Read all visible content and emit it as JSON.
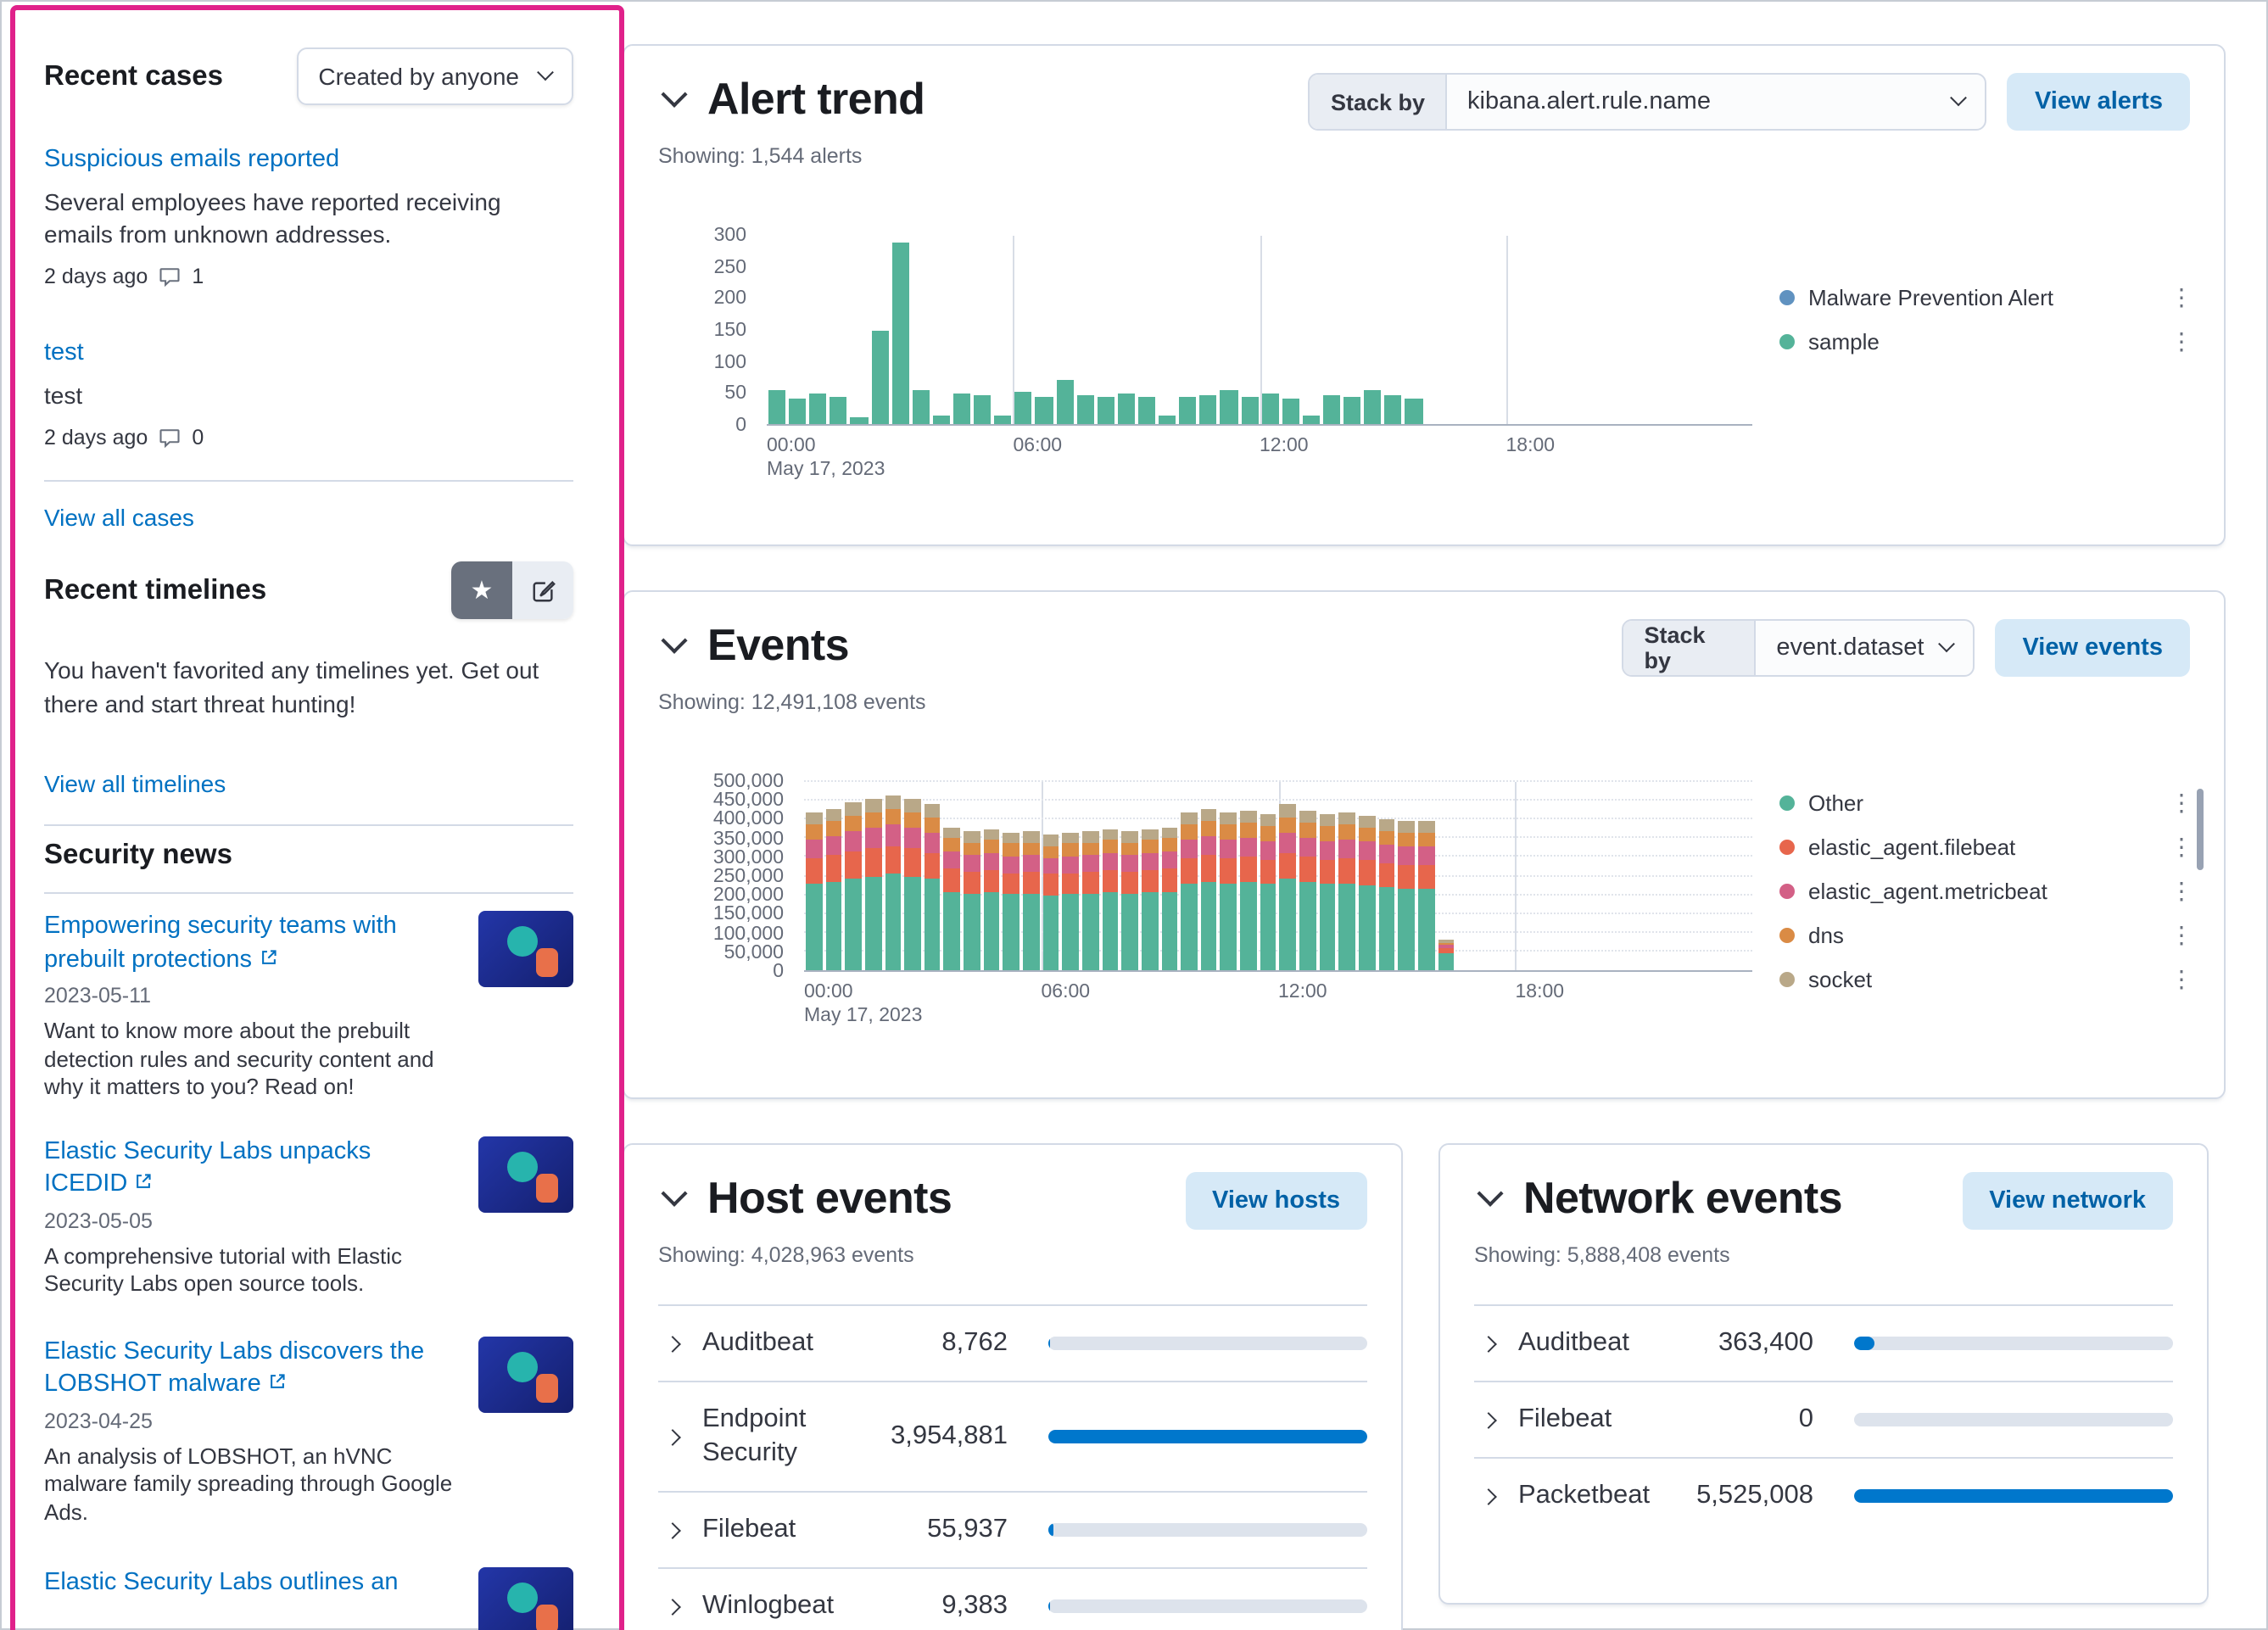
{
  "colors": {
    "link": "#0071c2",
    "primary_button_bg": "#d6e9f7",
    "primary_button_text": "#0061a6",
    "progress_fill": "#0077cc",
    "annotation_highlight": "#e0218a"
  },
  "sidebar": {
    "recent_cases": {
      "title": "Recent cases",
      "filter_label": "Created by anyone",
      "cases": [
        {
          "title": "Suspicious emails reported",
          "description": "Several employees have reported receiving emails from unknown addresses.",
          "time": "2 days ago",
          "comments": "1"
        },
        {
          "title": "test",
          "description": "test",
          "time": "2 days ago",
          "comments": "0"
        }
      ],
      "view_all": "View all cases"
    },
    "recent_timelines": {
      "title": "Recent timelines",
      "empty_message": "You haven't favorited any timelines yet. Get out there and start threat hunting!",
      "view_all": "View all timelines"
    },
    "security_news": {
      "title": "Security news",
      "items": [
        {
          "title": "Empowering security teams with prebuilt protections",
          "date": "2023-05-11",
          "description": "Want to know more about the prebuilt detection rules and security content and why it matters to you? Read on!"
        },
        {
          "title": "Elastic Security Labs unpacks ICEDID",
          "date": "2023-05-05",
          "description": "A comprehensive tutorial with Elastic Security Labs open source tools."
        },
        {
          "title": "Elastic Security Labs discovers the LOBSHOT malware",
          "date": "2023-04-25",
          "description": "An analysis of LOBSHOT, an hVNC malware family spreading through Google Ads."
        },
        {
          "title": "Elastic Security Labs outlines an"
        }
      ]
    }
  },
  "alert_trend": {
    "title": "Alert trend",
    "showing": "Showing: 1,544 alerts",
    "stack_by_label": "Stack by",
    "stack_by_value": "kibana.alert.rule.name",
    "button": "View alerts",
    "chart_data": {
      "type": "bar",
      "title": "Alert trend",
      "xlabel": "",
      "ylabel": "",
      "ylim": [
        0,
        300
      ],
      "y_ticks": [
        "0",
        "50",
        "100",
        "150",
        "200",
        "250",
        "300"
      ],
      "x_ticks": [
        "00:00",
        "06:00",
        "12:00",
        "18:00"
      ],
      "date_label": "May 17, 2023",
      "interval_minutes": 30,
      "domain_slots": 48,
      "legend_position": "right",
      "categories": [
        "00:00",
        "00:30",
        "01:00",
        "01:30",
        "02:00",
        "02:30",
        "03:00",
        "03:30",
        "04:00",
        "04:30",
        "05:00",
        "05:30",
        "06:00",
        "06:30",
        "07:00",
        "07:30",
        "08:00",
        "08:30",
        "09:00",
        "09:30",
        "10:00",
        "10:30",
        "11:00",
        "11:30",
        "12:00",
        "12:30",
        "13:00",
        "13:30",
        "14:00",
        "14:30",
        "15:00",
        "15:30"
      ],
      "series": [
        {
          "name": "Malware Prevention Alert",
          "color": "#6092C0",
          "values": [
            0,
            0,
            0,
            0,
            0,
            0,
            0,
            0,
            0,
            0,
            0,
            0,
            0,
            0,
            0,
            0,
            0,
            0,
            0,
            0,
            0,
            0,
            0,
            0,
            0,
            0,
            0,
            0,
            0,
            0,
            0,
            0
          ]
        },
        {
          "name": "sample",
          "color": "#54B399",
          "values": [
            55,
            40,
            48,
            42,
            12,
            150,
            290,
            55,
            14,
            50,
            45,
            14,
            52,
            42,
            70,
            46,
            42,
            48,
            42,
            14,
            44,
            46,
            55,
            42,
            48,
            40,
            14,
            46,
            42,
            55,
            46,
            40
          ]
        }
      ]
    }
  },
  "events": {
    "title": "Events",
    "showing": "Showing: 12,491,108 events",
    "stack_by_label": "Stack by",
    "stack_by_value": "event.dataset",
    "button": "View events",
    "chart_data": {
      "type": "bar",
      "title": "Events",
      "xlabel": "",
      "ylabel": "",
      "ylim": [
        0,
        500000
      ],
      "y_ticks": [
        "0",
        "50,000",
        "100,000",
        "150,000",
        "200,000",
        "250,000",
        "300,000",
        "350,000",
        "400,000",
        "450,000",
        "500,000"
      ],
      "x_ticks": [
        "00:00",
        "06:00",
        "12:00",
        "18:00"
      ],
      "date_label": "May 17, 2023",
      "interval_minutes": 30,
      "domain_slots": 48,
      "legend_position": "right",
      "legend_scrollable": true,
      "categories": [
        "00:00",
        "00:30",
        "01:00",
        "01:30",
        "02:00",
        "02:30",
        "03:00",
        "03:30",
        "04:00",
        "04:30",
        "05:00",
        "05:30",
        "06:00",
        "06:30",
        "07:00",
        "07:30",
        "08:00",
        "08:30",
        "09:00",
        "09:30",
        "10:00",
        "10:30",
        "11:00",
        "11:30",
        "12:00",
        "12:30",
        "13:00",
        "13:30",
        "14:00",
        "14:30",
        "15:00",
        "15:30",
        "16:00"
      ],
      "series": [
        {
          "name": "Other",
          "color": "#54B399",
          "values": [
            231000,
            236000,
            245000,
            250000,
            256000,
            250000,
            242000,
            209000,
            204000,
            206000,
            201000,
            204000,
            198000,
            201000,
            204000,
            206000,
            204000,
            206000,
            209000,
            231000,
            236000,
            231000,
            234000,
            228000,
            242000,
            234000,
            228000,
            231000,
            226000,
            220000,
            217000,
            217000,
            44000
          ]
        },
        {
          "name": "elastic_agent.filebeat",
          "color": "#E7664C",
          "values": [
            67000,
            69000,
            71000,
            73000,
            74000,
            73000,
            70000,
            61000,
            59000,
            60000,
            58000,
            59000,
            58000,
            58000,
            59000,
            60000,
            59000,
            60000,
            61000,
            67000,
            69000,
            67000,
            68000,
            66000,
            70000,
            68000,
            66000,
            67000,
            66000,
            64000,
            63000,
            63000,
            13000
          ]
        },
        {
          "name": "elastic_agent.metricbeat",
          "color": "#D36086",
          "values": [
            50000,
            52000,
            53000,
            55000,
            56000,
            55000,
            53000,
            46000,
            44000,
            45000,
            44000,
            44000,
            43000,
            44000,
            44000,
            45000,
            44000,
            45000,
            46000,
            50000,
            52000,
            50000,
            51000,
            50000,
            53000,
            51000,
            50000,
            50000,
            49000,
            48000,
            47000,
            47000,
            10000
          ]
        },
        {
          "name": "dns",
          "color": "#DA8B45",
          "values": [
            38000,
            39000,
            40000,
            41000,
            42000,
            41000,
            40000,
            34000,
            33000,
            34000,
            33000,
            33000,
            32000,
            33000,
            33000,
            34000,
            33000,
            34000,
            34000,
            38000,
            39000,
            38000,
            38000,
            37000,
            40000,
            38000,
            37000,
            38000,
            37000,
            36000,
            36000,
            36000,
            7000
          ]
        },
        {
          "name": "socket",
          "color": "#B9A888",
          "values": [
            34000,
            34000,
            36000,
            36000,
            37000,
            36000,
            35000,
            30000,
            30000,
            30000,
            29000,
            30000,
            29000,
            29000,
            30000,
            30000,
            30000,
            30000,
            30000,
            34000,
            34000,
            34000,
            34000,
            33000,
            35000,
            34000,
            33000,
            34000,
            33000,
            32000,
            32000,
            32000,
            6000
          ]
        }
      ]
    }
  },
  "host_events": {
    "title": "Host events",
    "showing": "Showing: 4,028,963 events",
    "button": "View hosts",
    "rows": [
      {
        "label": "Auditbeat",
        "display": "8,762",
        "value": 8762
      },
      {
        "label": "Endpoint Security",
        "display": "3,954,881",
        "value": 3954881
      },
      {
        "label": "Filebeat",
        "display": "55,937",
        "value": 55937
      },
      {
        "label": "Winlogbeat",
        "display": "9,383",
        "value": 9383
      }
    ]
  },
  "network_events": {
    "title": "Network events",
    "showing": "Showing: 5,888,408 events",
    "button": "View network",
    "rows": [
      {
        "label": "Auditbeat",
        "display": "363,400",
        "value": 363400
      },
      {
        "label": "Filebeat",
        "display": "0",
        "value": 0
      },
      {
        "label": "Packetbeat",
        "display": "5,525,008",
        "value": 5525008
      }
    ]
  }
}
